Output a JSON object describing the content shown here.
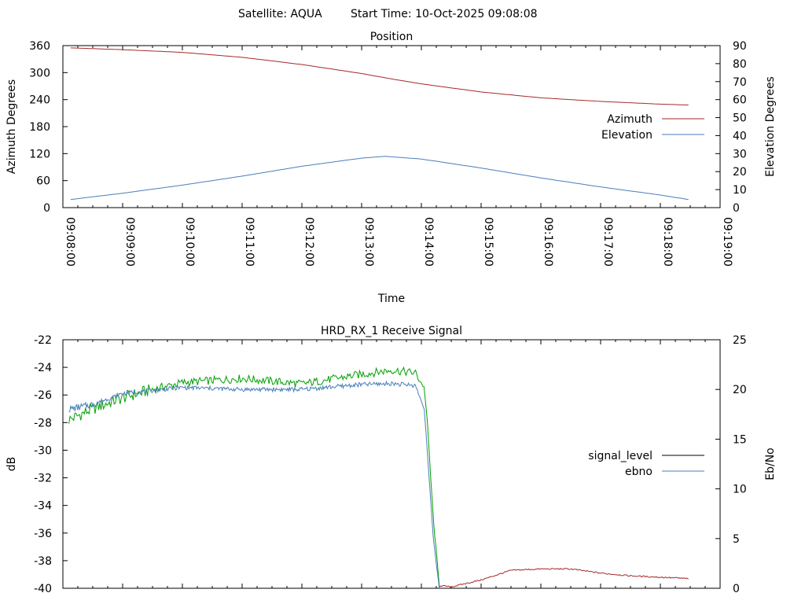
{
  "header": {
    "satellite": "Satellite: AQUA",
    "start_time": "Start Time: 10-Oct-2025 09:08:08"
  },
  "chart_data": [
    {
      "type": "line",
      "title": "Position",
      "xlabel": "Time",
      "ylabel": "Azimuth Degrees",
      "y2label": "Elevation Degrees",
      "x_ticks": [
        "09:08:00",
        "09:09:00",
        "09:10:00",
        "09:11:00",
        "09:12:00",
        "09:13:00",
        "09:14:00",
        "09:15:00",
        "09:16:00",
        "09:17:00",
        "09:18:00",
        "09:19:00"
      ],
      "xlim_minutes": [
        0,
        11
      ],
      "ylim": [
        0,
        360
      ],
      "y_ticks": [
        0,
        60,
        120,
        180,
        240,
        300,
        360
      ],
      "y2lim": [
        0,
        90
      ],
      "y2_ticks": [
        0,
        10,
        20,
        30,
        40,
        50,
        60,
        70,
        80,
        90
      ],
      "legend_position": "right",
      "series": [
        {
          "name": "Azimuth",
          "axis": "y",
          "color": "#a52a2a",
          "x": [
            0.13,
            1,
            2,
            3,
            4,
            5,
            5.5,
            6,
            7,
            8,
            9,
            10,
            10.47
          ],
          "y": [
            355,
            351,
            345,
            334,
            318,
            298,
            286,
            275,
            257,
            244,
            236,
            230,
            228
          ]
        },
        {
          "name": "Elevation",
          "axis": "y2",
          "color": "#4a7ebb",
          "x": [
            0.13,
            1,
            2,
            3,
            4,
            5,
            5.4,
            6,
            7,
            8,
            9,
            10,
            10.47
          ],
          "y": [
            4.5,
            8,
            12.5,
            17.5,
            23,
            27.5,
            28.5,
            27,
            22,
            16.5,
            11.5,
            7,
            4.5
          ]
        }
      ]
    },
    {
      "type": "line",
      "title": "HRD_RX_1 Receive Signal",
      "ylabel": "dB",
      "y2label": "Eb/No",
      "xlim_minutes": [
        0,
        11
      ],
      "ylim": [
        -40,
        -22
      ],
      "y_ticks": [
        -40,
        -38,
        -36,
        -34,
        -32,
        -30,
        -28,
        -26,
        -24,
        -22
      ],
      "y2lim": [
        0,
        25
      ],
      "y2_ticks": [
        0,
        5,
        10,
        15,
        20,
        25
      ],
      "legend_position": "right",
      "legend": [
        {
          "name": "signal_level",
          "color": "#000000"
        },
        {
          "name": "ebno",
          "color": "#4a7ebb"
        }
      ],
      "series": [
        {
          "name": "signal_level",
          "axis": "y",
          "color_segments": [
            "#00a000",
            "#a52a2a"
          ],
          "x": [
            0.1,
            0.5,
            1,
            1.5,
            2,
            3,
            3.5,
            4,
            5,
            5.5,
            5.9,
            6.05,
            6.1,
            6.2,
            6.3,
            6.5,
            7,
            7.5,
            8,
            8.5,
            9,
            9.5,
            10,
            10.47
          ],
          "y": [
            -27.8,
            -27,
            -26.2,
            -25.6,
            -25.1,
            -24.8,
            -25.0,
            -25.2,
            -24.5,
            -24.2,
            -24.4,
            -25.5,
            -28,
            -35,
            -39.8,
            -39.9,
            -39.4,
            -38.7,
            -38.6,
            -38.6,
            -38.9,
            -39.1,
            -39.2,
            -39.3
          ]
        },
        {
          "name": "ebno",
          "axis": "y2",
          "color": "#4a7ebb",
          "x": [
            0.1,
            0.5,
            1,
            2,
            3,
            4,
            5,
            5.5,
            5.9,
            6.05,
            6.2,
            6.3
          ],
          "y": [
            18,
            18.5,
            19.6,
            20.2,
            20.0,
            20.0,
            20.5,
            20.6,
            20.4,
            18,
            5,
            0
          ]
        }
      ]
    }
  ]
}
